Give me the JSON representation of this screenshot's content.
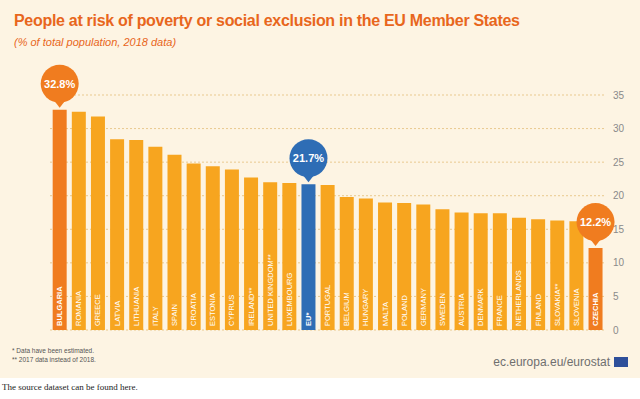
{
  "chart_data": {
    "type": "bar",
    "title": "People at risk of poverty or social exclusion in the EU Member States",
    "subtitle": "(% of total population, 2018 data)",
    "categories": [
      "BULGARIA",
      "ROMANIA",
      "GREECE",
      "LATVIA",
      "LITHUANIA",
      "ITALY",
      "SPAIN",
      "CROATIA",
      "ESTONIA",
      "CYPRUS",
      "IRELAND**",
      "UNITED KINGDOM**",
      "LUXEMBOURG",
      "EU*",
      "PORTUGAL",
      "BELGIUM",
      "HUNGARY",
      "MALTA",
      "POLAND",
      "GERMANY",
      "SWEDEN",
      "AUSTRIA",
      "DENMARK",
      "FRANCE",
      "NETHERLANDS",
      "FINLAND",
      "SLOVAKIA**",
      "SLOVENIA",
      "CZECHIA"
    ],
    "values": [
      32.8,
      32.5,
      31.8,
      28.4,
      28.3,
      27.3,
      26.1,
      24.8,
      24.4,
      23.9,
      22.7,
      22.0,
      21.9,
      21.7,
      21.6,
      19.8,
      19.6,
      19.0,
      18.9,
      18.7,
      18.0,
      17.5,
      17.4,
      17.4,
      16.7,
      16.5,
      16.3,
      16.2,
      12.2
    ],
    "value_labels": [
      "32.8%",
      null,
      null,
      null,
      null,
      null,
      null,
      null,
      null,
      null,
      null,
      null,
      null,
      "21.7%",
      null,
      null,
      null,
      null,
      null,
      null,
      null,
      null,
      null,
      null,
      null,
      null,
      null,
      null,
      "12.2%"
    ],
    "colors": [
      "#f07c1f",
      "#f7a51f",
      "#f7a51f",
      "#f7a51f",
      "#f7a51f",
      "#f7a51f",
      "#f7a51f",
      "#f7a51f",
      "#f7a51f",
      "#f7a51f",
      "#f7a51f",
      "#f7a51f",
      "#f7a51f",
      "#2e6db5",
      "#f7a51f",
      "#f7a51f",
      "#f7a51f",
      "#f7a51f",
      "#f7a51f",
      "#f7a51f",
      "#f7a51f",
      "#f7a51f",
      "#f7a51f",
      "#f7a51f",
      "#f7a51f",
      "#f7a51f",
      "#f7a51f",
      "#f7a51f",
      "#f07c1f"
    ],
    "ylim": [
      0,
      35
    ],
    "yticks": [
      0,
      5,
      10,
      15,
      20,
      25,
      30,
      35
    ],
    "grid": true,
    "data_labels": true,
    "tick_labels": "y",
    "footnotes": [
      "* Data have been estimated.",
      "** 2017 data instead of 2018."
    ],
    "source": "ec.europa.eu/eurostat",
    "note": "The source dataset can be found here."
  }
}
